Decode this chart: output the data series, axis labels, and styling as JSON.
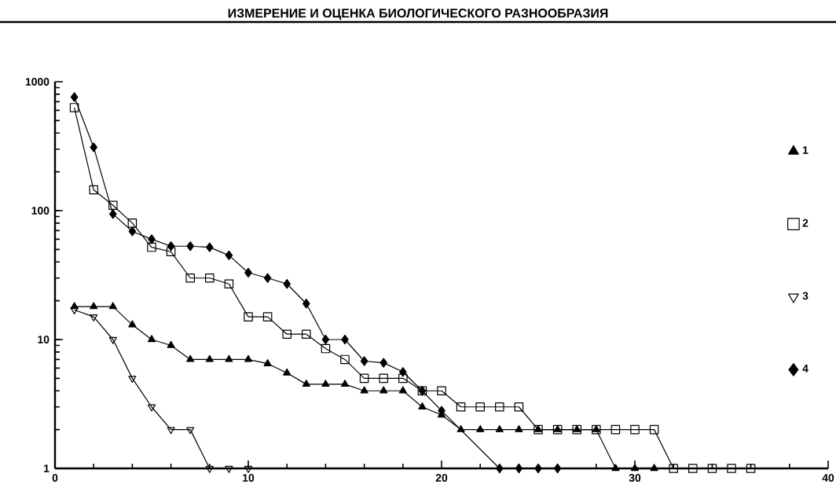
{
  "chart_data": {
    "type": "line",
    "title": "ИЗМЕРЕНИЕ И ОЦЕНКА БИОЛОГИЧЕСКОГО РАЗНООБРАЗИЯ",
    "log": "y",
    "xlim": [
      0,
      40
    ],
    "xticks": [
      0,
      10,
      20,
      30,
      40
    ],
    "ylim": [
      1,
      1000
    ],
    "yticks": [
      1,
      10,
      100,
      1000
    ],
    "grid": false,
    "legend": "right",
    "line_style": "solid",
    "series": [
      {
        "name": "1",
        "color": "#000000",
        "marker": "triangle",
        "x": [
          1,
          2,
          3,
          4,
          5,
          6,
          7,
          8,
          9,
          10,
          11,
          12,
          13,
          14,
          15,
          16,
          17,
          18,
          19,
          20,
          21,
          22,
          23,
          24,
          25,
          26,
          27,
          28,
          29,
          30,
          31
        ],
        "values": [
          18,
          18,
          18,
          13,
          10,
          9,
          7,
          7,
          7,
          7,
          6.5,
          5.5,
          4.5,
          4.5,
          4.5,
          4,
          4,
          4,
          3,
          2.6,
          2,
          2,
          2,
          2,
          2,
          2,
          2,
          2,
          1,
          1,
          1
        ]
      },
      {
        "name": "2",
        "color": "#000000",
        "marker": "square-open",
        "x": [
          1,
          2,
          3,
          4,
          5,
          6,
          7,
          8,
          9,
          10,
          11,
          12,
          13,
          14,
          15,
          16,
          17,
          18,
          19,
          20,
          21,
          22,
          23,
          24,
          25,
          26,
          27,
          28,
          29,
          30,
          31,
          32,
          33,
          34,
          35,
          36
        ],
        "values": [
          630,
          145,
          110,
          80,
          52,
          48,
          30,
          30,
          27,
          15,
          15,
          11,
          11,
          8.5,
          7,
          5,
          5,
          5,
          4,
          4,
          3,
          3,
          3,
          3,
          2,
          2,
          2,
          2,
          2,
          2,
          2,
          1,
          1,
          1,
          1,
          1
        ]
      },
      {
        "name": "3",
        "color": "#000000",
        "marker": "triangle-down-open",
        "x": [
          1,
          2,
          3,
          4,
          5,
          6,
          7,
          8,
          9,
          10
        ],
        "values": [
          17,
          15,
          10,
          5,
          3,
          2,
          2,
          1,
          1,
          1
        ]
      },
      {
        "name": "4",
        "color": "#000000",
        "marker": "diamond",
        "x": [
          1,
          2,
          3,
          4,
          5,
          6,
          7,
          8,
          9,
          10,
          11,
          12,
          13,
          14,
          15,
          16,
          17,
          18,
          19,
          20,
          21,
          22,
          23,
          24,
          25,
          26
        ],
        "values": [
          760,
          310,
          94,
          69,
          60,
          53,
          53,
          52,
          45,
          33,
          30,
          27,
          19,
          10,
          10,
          6.8,
          6.6,
          5.6,
          4,
          2.8,
          null,
          null,
          1,
          1,
          1,
          1
        ]
      }
    ]
  }
}
